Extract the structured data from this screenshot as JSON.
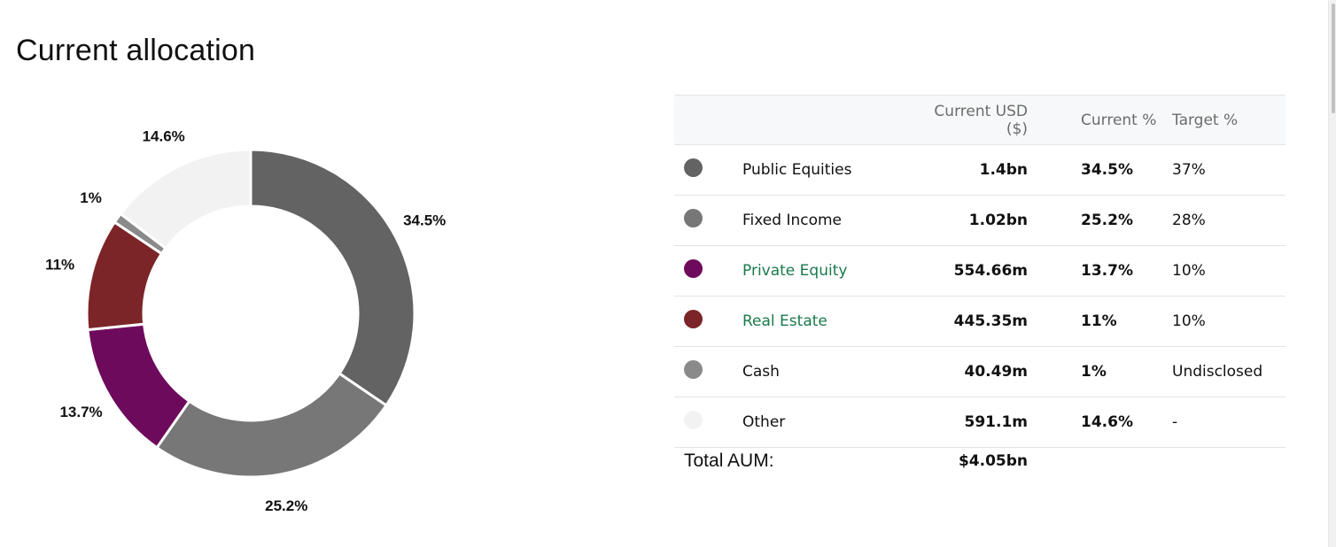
{
  "page": {
    "title": "Current allocation"
  },
  "table": {
    "headers": {
      "usd": "Current USD ($)",
      "current_pct": "Current %",
      "target_pct": "Target %"
    },
    "rows": [
      {
        "name": "Public Equities",
        "usd": "1.4bn",
        "current_pct": "34.5%",
        "target_pct": "37%",
        "color": "#636363",
        "link": false
      },
      {
        "name": "Fixed Income",
        "usd": "1.02bn",
        "current_pct": "25.2%",
        "target_pct": "28%",
        "color": "#777777",
        "link": false
      },
      {
        "name": "Private Equity",
        "usd": "554.66m",
        "current_pct": "13.7%",
        "target_pct": "10%",
        "color": "#6e0a5c",
        "link": true
      },
      {
        "name": "Real Estate",
        "usd": "445.35m",
        "current_pct": "11%",
        "target_pct": "10%",
        "color": "#7b2528",
        "link": true
      },
      {
        "name": "Cash",
        "usd": "40.49m",
        "current_pct": "1%",
        "target_pct": "Undisclosed",
        "color": "#8a8a8a",
        "link": false
      },
      {
        "name": "Other",
        "usd": "591.1m",
        "current_pct": "14.6%",
        "target_pct": "-",
        "color": "#f2f2f2",
        "link": false
      }
    ],
    "total": {
      "label": "Total AUM:",
      "value": "$4.05bn"
    }
  },
  "chart_data": {
    "type": "pie",
    "title": "",
    "categories": [
      "Public Equities",
      "Fixed Income",
      "Private Equity",
      "Real Estate",
      "Cash",
      "Other"
    ],
    "values": [
      34.5,
      25.2,
      13.7,
      11,
      1,
      14.6
    ],
    "labels": [
      "34.5%",
      "25.2%",
      "13.7%",
      "11%",
      "1%",
      "14.6%"
    ],
    "colors": [
      "#636363",
      "#777777",
      "#6e0a5c",
      "#7b2528",
      "#8a8a8a",
      "#f2f2f2"
    ],
    "legend": "none",
    "donut": true
  }
}
